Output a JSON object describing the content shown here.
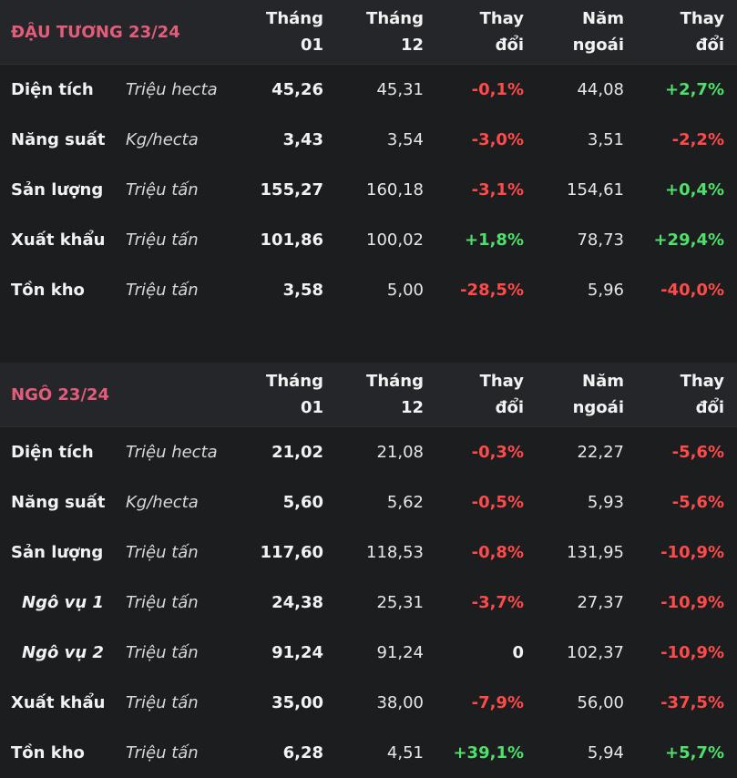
{
  "headers": {
    "col1": [
      "Tháng",
      "01"
    ],
    "col2": [
      "Tháng",
      "12"
    ],
    "col3": [
      "Thay",
      "đổi"
    ],
    "col4": [
      "Năm",
      "ngoái"
    ],
    "col5": [
      "Thay",
      "đổi"
    ]
  },
  "colors": {
    "negative": "#ff4a4a",
    "positive": "#4ee06a",
    "title": "#e35d7b"
  },
  "sections": [
    {
      "title": "ĐẬU TƯƠNG 23/24",
      "rows": [
        {
          "name": "Diện tích",
          "unit": "Triệu hecta",
          "jan": "45,26",
          "dec": "45,31",
          "chg": "-0,1%",
          "ly": "44,08",
          "chg_ly": "+2,7%"
        },
        {
          "name": "Năng suất",
          "unit": "Kg/hecta",
          "jan": "3,43",
          "dec": "3,54",
          "chg": "-3,0%",
          "ly": "3,51",
          "chg_ly": "-2,2%"
        },
        {
          "name": "Sản lượng",
          "unit": "Triệu tấn",
          "jan": "155,27",
          "dec": "160,18",
          "chg": "-3,1%",
          "ly": "154,61",
          "chg_ly": "+0,4%"
        },
        {
          "name": "Xuất khẩu",
          "unit": "Triệu tấn",
          "jan": "101,86",
          "dec": "100,02",
          "chg": "+1,8%",
          "ly": "78,73",
          "chg_ly": "+29,4%"
        },
        {
          "name": "Tồn kho",
          "unit": "Triệu tấn",
          "jan": "3,58",
          "dec": "5,00",
          "chg": "-28,5%",
          "ly": "5,96",
          "chg_ly": "-40,0%"
        }
      ]
    },
    {
      "title": "NGÔ 23/24",
      "rows": [
        {
          "name": "Diện tích",
          "unit": "Triệu hecta",
          "jan": "21,02",
          "dec": "21,08",
          "chg": "-0,3%",
          "ly": "22,27",
          "chg_ly": "-5,6%"
        },
        {
          "name": "Năng suất",
          "unit": "Kg/hecta",
          "jan": "5,60",
          "dec": "5,62",
          "chg": "-0,5%",
          "ly": "5,93",
          "chg_ly": "-5,6%"
        },
        {
          "name": "Sản lượng",
          "unit": "Triệu tấn",
          "jan": "117,60",
          "dec": "118,53",
          "chg": "-0,8%",
          "ly": "131,95",
          "chg_ly": "-10,9%"
        },
        {
          "name": "Ngô vụ 1",
          "unit": "Triệu tấn",
          "jan": "24,38",
          "dec": "25,31",
          "chg": "-3,7%",
          "ly": "27,37",
          "chg_ly": "-10,9%",
          "sub": true
        },
        {
          "name": "Ngô vụ 2",
          "unit": "Triệu tấn",
          "jan": "91,24",
          "dec": "91,24",
          "chg": "0",
          "ly": "102,37",
          "chg_ly": "-10,9%",
          "sub": true
        },
        {
          "name": "Xuất khẩu",
          "unit": "Triệu tấn",
          "jan": "35,00",
          "dec": "38,00",
          "chg": "-7,9%",
          "ly": "56,00",
          "chg_ly": "-37,5%"
        },
        {
          "name": "Tồn kho",
          "unit": "Triệu tấn",
          "jan": "6,28",
          "dec": "4,51",
          "chg": "+39,1%",
          "ly": "5,94",
          "chg_ly": "+5,7%"
        }
      ]
    }
  ]
}
